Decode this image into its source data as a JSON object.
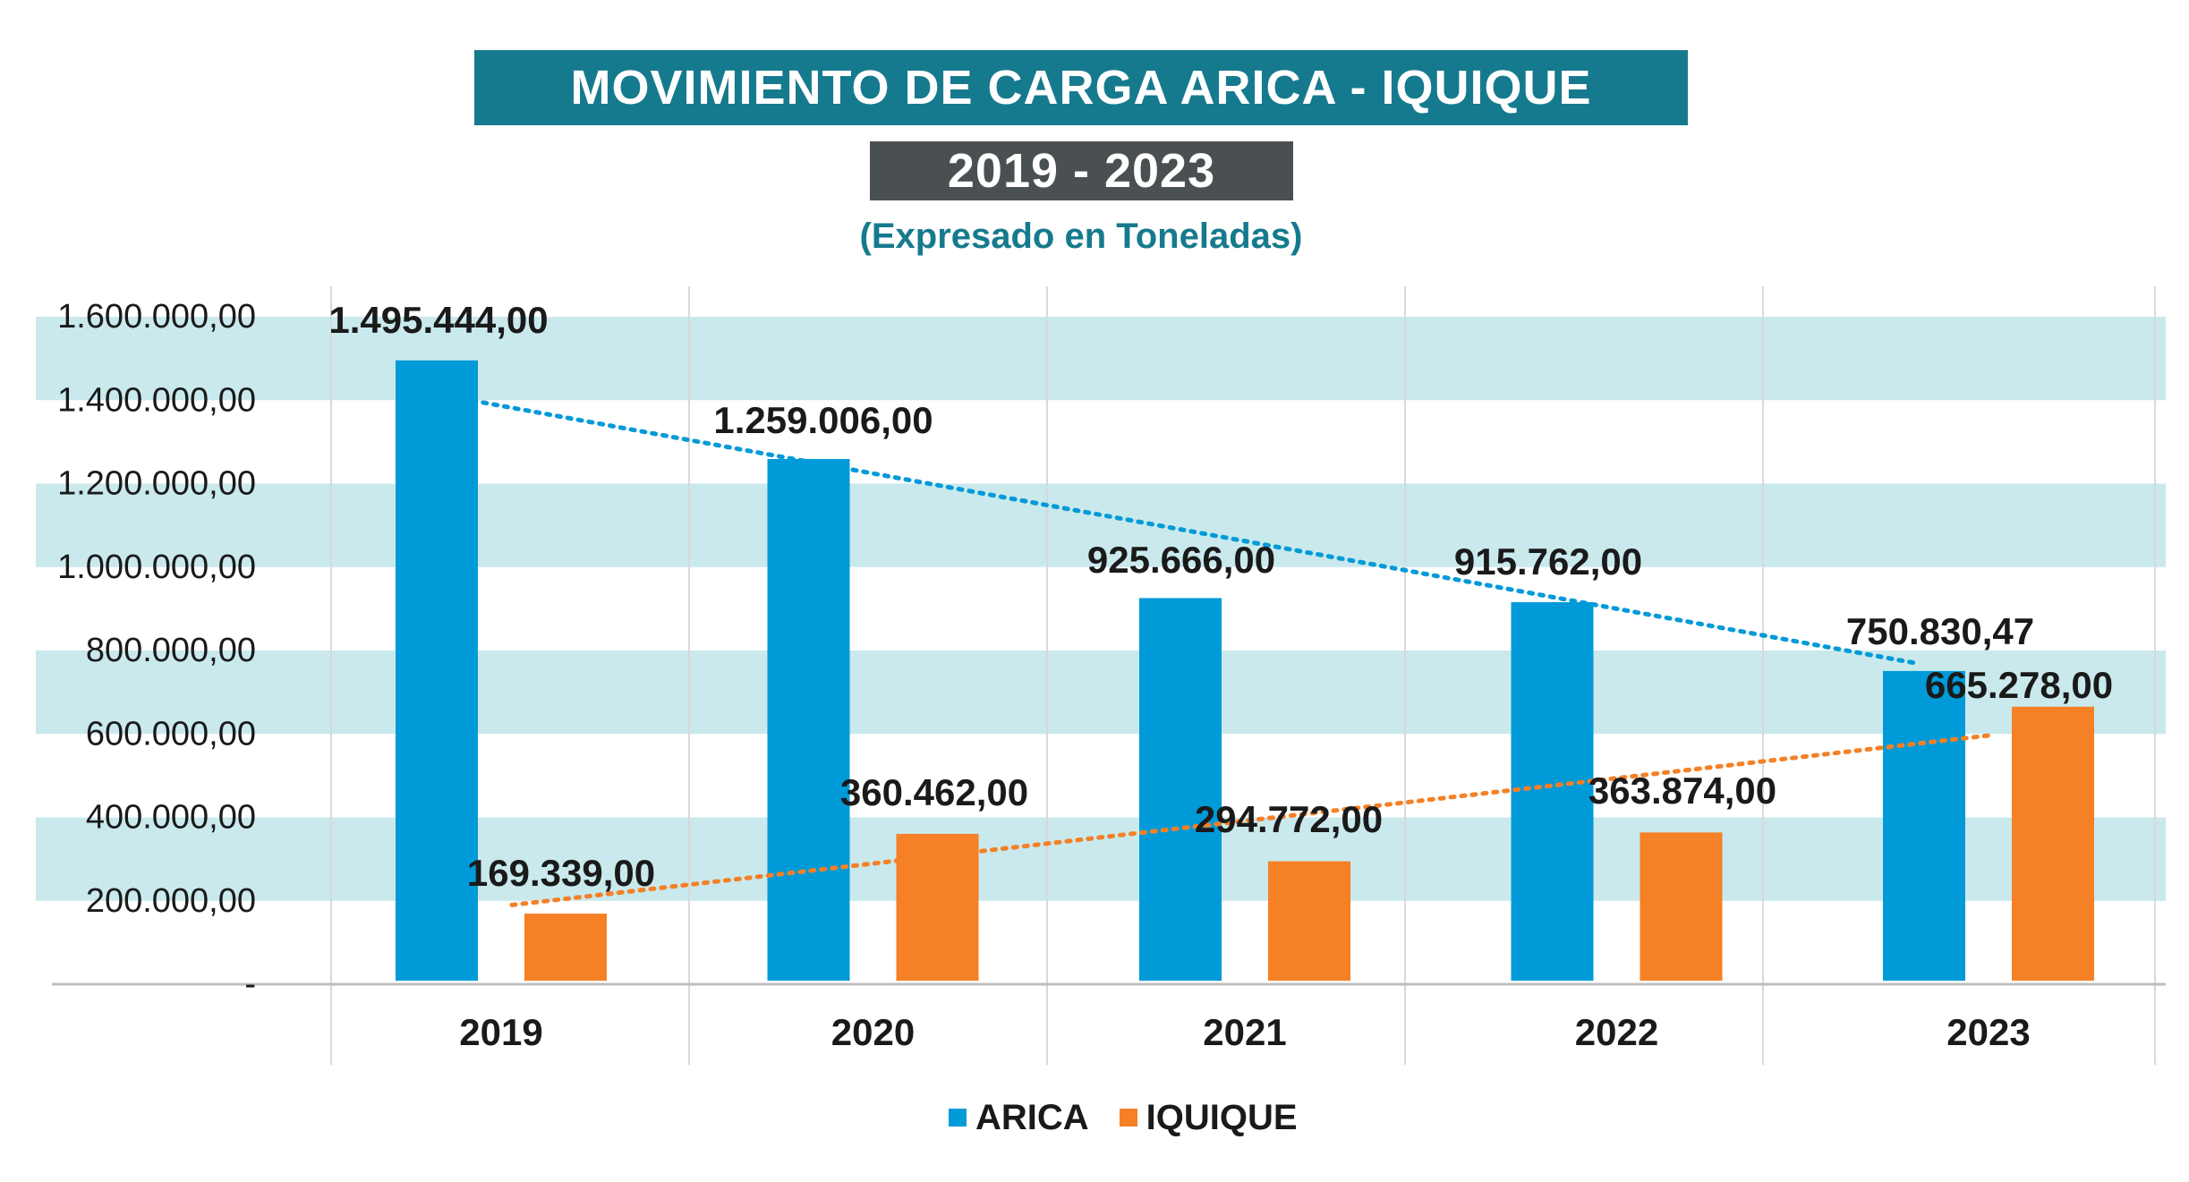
{
  "header": {
    "title": "MOVIMIENTO DE CARGA ARICA - IQUIQUE",
    "years": "2019 - 2023",
    "subtitle": "(Expresado en Toneladas)"
  },
  "chart_data": {
    "type": "bar",
    "categories": [
      "2019",
      "2020",
      "2021",
      "2022",
      "2023"
    ],
    "series": [
      {
        "name": "ARICA",
        "color": "#009ad9",
        "values": [
          1495444.0,
          1259006.0,
          925666.0,
          915762.0,
          750830.47
        ],
        "labels": [
          "1.495.444,00",
          "1.259.006,00",
          "925.666,00",
          "915.762,00",
          "750.830,47"
        ]
      },
      {
        "name": "IQUIQUE",
        "color": "#f58025",
        "values": [
          169339.0,
          360462.0,
          294772.0,
          363874.0,
          665278.0
        ],
        "labels": [
          "169.339,00",
          "360.462,00",
          "294.772,00",
          "363.874,00",
          "665.278,00"
        ]
      }
    ],
    "ylim": [
      0,
      1600000
    ],
    "yticks": [
      0,
      200000,
      400000,
      600000,
      800000,
      1000000,
      1200000,
      1400000,
      1600000
    ],
    "ytick_labels": [
      "-",
      "200.000,00",
      "400.000,00",
      "600.000,00",
      "800.000,00",
      "1.000.000,00",
      "1.200.000,00",
      "1.400.000,00",
      "1.600.000,00"
    ],
    "trendlines": "dotted",
    "band_color": "#c9e9ed",
    "legend_position": "bottom",
    "xlabel": "",
    "ylabel": ""
  }
}
